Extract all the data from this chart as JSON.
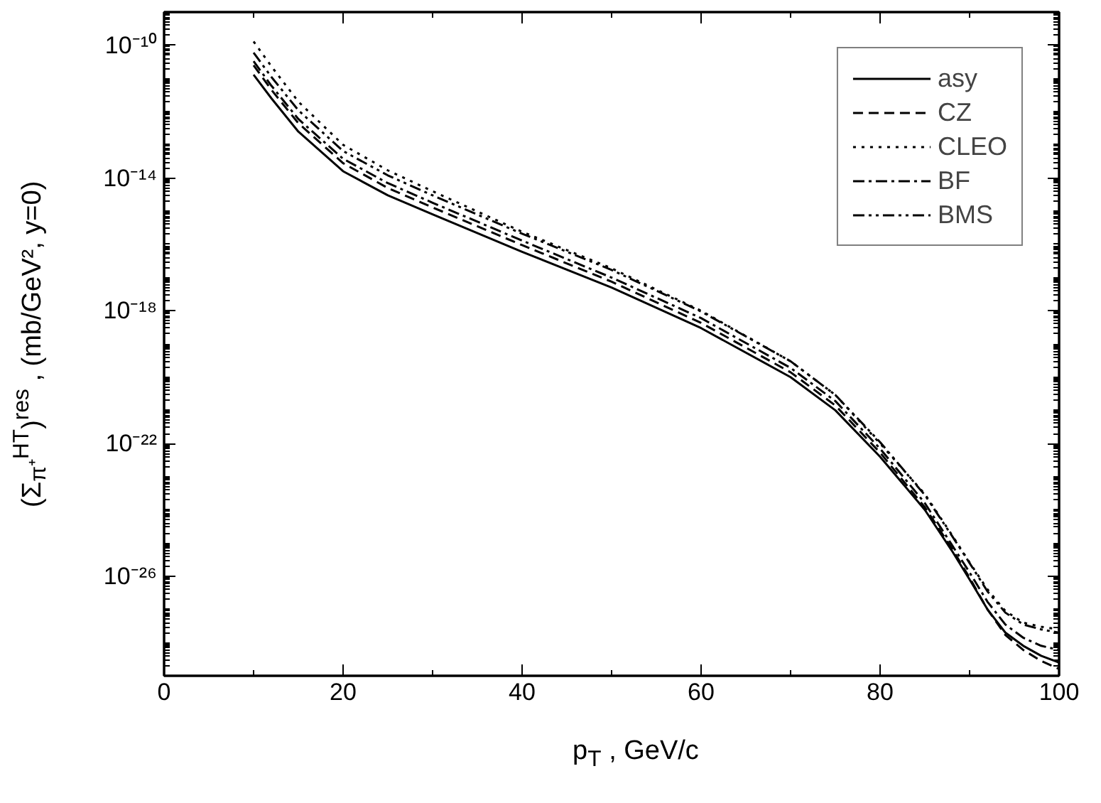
{
  "chart_data": {
    "type": "line",
    "xlabel": "p$_{T}$ ,   GeV/c",
    "ylabel": "(Σ$_{π⁺}$$^{HT}$)$^{res}$ , (mb/GeV², y=0)",
    "x": [
      10,
      12,
      15,
      20,
      25,
      30,
      40,
      50,
      60,
      70,
      75,
      80,
      85,
      88,
      90,
      92,
      94,
      96,
      98,
      100
    ],
    "series": [
      {
        "name": "asy",
        "color": "#000000",
        "line_style": "solid",
        "values": [
          1.3e-11,
          2.5e-12,
          2.5e-13,
          1.6e-14,
          3e-15,
          8e-16,
          6e-17,
          5e-18,
          3e-19,
          1e-20,
          1e-21,
          4e-23,
          1e-24,
          6e-26,
          8e-27,
          1e-27,
          2e-28,
          8e-29,
          4e-29,
          2.5e-29
        ]
      },
      {
        "name": "CZ",
        "color": "#000000",
        "line_style": "dashed",
        "values": [
          2.5e-11,
          4.5e-12,
          4.5e-13,
          2.8e-14,
          5e-15,
          1.3e-15,
          9.5e-17,
          7.5e-18,
          4.3e-19,
          1.4e-20,
          1.4e-21,
          5.3e-23,
          1.2e-24,
          7e-26,
          9e-27,
          1e-27,
          1.7e-28,
          6e-29,
          2.8e-29,
          1.6e-29
        ]
      },
      {
        "name": "CLEO",
        "color": "#000000",
        "line_style": "dotted",
        "values": [
          1.3e-10,
          2.3e-11,
          2e-12,
          1e-13,
          1.7e-14,
          4e-15,
          2.4e-16,
          1.9e-17,
          1e-18,
          3e-20,
          2.9e-21,
          1e-22,
          3e-24,
          1.8e-25,
          2.6e-26,
          4e-27,
          9e-28,
          4e-28,
          3e-28,
          2.5e-28
        ]
      },
      {
        "name": "BF",
        "color": "#000000",
        "line_style": "dashdot",
        "values": [
          3.3e-11,
          6e-12,
          6e-13,
          3.8e-14,
          7e-15,
          1.8e-15,
          1.3e-16,
          1e-17,
          6e-19,
          1.9e-20,
          1.9e-21,
          7e-23,
          1.6e-24,
          9e-26,
          1.3e-26,
          1.7e-27,
          3.5e-28,
          1.4e-28,
          8e-29,
          6e-29
        ]
      },
      {
        "name": "BMS",
        "color": "#000000",
        "line_style": "dashdotdot",
        "values": [
          6e-11,
          1.1e-11,
          1.1e-12,
          6.5e-14,
          1.2e-14,
          3e-15,
          2.1e-16,
          1.7e-17,
          9.5e-19,
          3e-20,
          2.9e-21,
          1.1e-22,
          2.8e-24,
          1.7e-25,
          2.5e-26,
          3.5e-27,
          8e-28,
          3.5e-28,
          2.5e-28,
          2e-28
        ]
      }
    ],
    "xlim": [
      0,
      100
    ],
    "xticks": [
      0,
      20,
      40,
      60,
      80,
      100
    ],
    "ylim": [
      1e-29,
      1e-09
    ],
    "yticks": [
      {
        "value": 1e-10,
        "label": "10⁻¹⁰"
      },
      {
        "value": 1e-14,
        "label": "10⁻¹⁴"
      },
      {
        "value": 1e-18,
        "label": "10⁻¹⁸"
      },
      {
        "value": 1e-22,
        "label": "10⁻²²"
      },
      {
        "value": 1e-26,
        "label": "10⁻²⁶"
      }
    ],
    "log": "y",
    "grid": false,
    "legend": "top right",
    "marker": "none"
  }
}
